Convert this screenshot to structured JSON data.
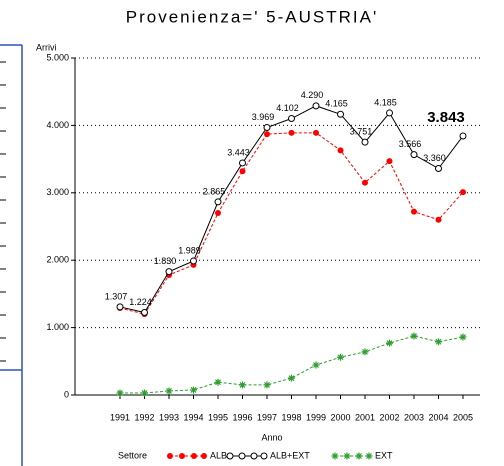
{
  "chart_data": {
    "type": "line",
    "title": "Provenienza=' 5-AUSTRIA'",
    "y_label": "Arrivi",
    "x_label": "Anno",
    "legend_title": "Settore",
    "categories": [
      "1991",
      "1992",
      "1993",
      "1994",
      "1995",
      "1996",
      "1997",
      "1998",
      "1999",
      "2000",
      "2001",
      "2002",
      "2003",
      "2004",
      "2005"
    ],
    "series": [
      {
        "name": "ALB",
        "color": "#ff0000",
        "marker": "dot",
        "line_style": "dashed",
        "values": [
          1290,
          1200,
          1780,
          1930,
          2700,
          3320,
          3870,
          3890,
          3890,
          3630,
          3150,
          3470,
          2720,
          2600,
          3010
        ]
      },
      {
        "name": "ALB+EXT",
        "color": "#000000",
        "marker": "circle",
        "line_style": "solid",
        "values": [
          1307,
          1224,
          1830,
          1989,
          2865,
          3443,
          3969,
          4102,
          4290,
          4165,
          3751,
          4185,
          3566,
          3360,
          3843
        ],
        "value_labels": [
          "1.307",
          "1.224",
          "1.830",
          "1.989",
          "2.865",
          "3.443",
          "3.969",
          "4.102",
          "4.290",
          "4.165",
          "3.751",
          "4.185",
          "3.566",
          "3.360",
          "3.843"
        ]
      },
      {
        "name": "EXT",
        "color": "#2e9e2e",
        "marker": "star",
        "line_style": "dashed",
        "values": [
          30,
          30,
          60,
          75,
          190,
          150,
          150,
          250,
          445,
          560,
          640,
          770,
          875,
          790,
          860
        ]
      }
    ],
    "ylim": [
      0,
      5000
    ],
    "yticks": [
      0,
      {
        "value": 1000,
        "label": "1.000"
      },
      {
        "value": 2000,
        "label": "2.000"
      },
      {
        "value": 3000,
        "label": "3.000"
      },
      {
        "value": 4000,
        "label": "4.000"
      },
      {
        "value": 5000,
        "label": "5.000"
      }
    ],
    "grid": true
  }
}
